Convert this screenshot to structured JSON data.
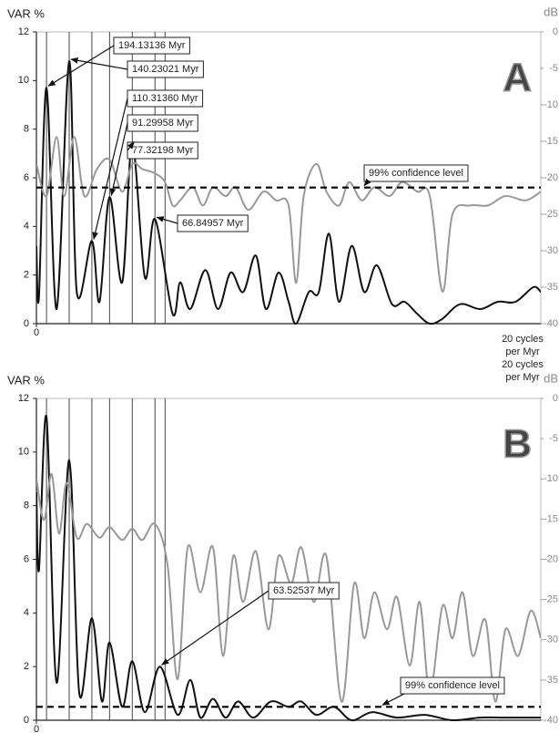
{
  "chart_data": [
    {
      "type": "line",
      "panel_label": "A",
      "y_label": "VAR %",
      "y2_label": "dB",
      "x_label": [
        "20 cycles",
        "per Myr"
      ],
      "xlim": [
        0,
        20
      ],
      "xticks": [
        0
      ],
      "ylim": [
        0,
        12
      ],
      "yticks": [
        0,
        2,
        4,
        6,
        8,
        10,
        12
      ],
      "y2lim": [
        -40,
        0
      ],
      "y2ticks": [
        0,
        -5,
        -10,
        -15,
        -20,
        -25,
        -30,
        -35,
        -40
      ],
      "series": [
        {
          "color": "#111111",
          "x": [
            0,
            0.1,
            0.4,
            0.8,
            1.3,
            1.6,
            2.2,
            2.5,
            2.9,
            3.4,
            3.8,
            4.3,
            4.7,
            5.4,
            5.7,
            6.1,
            6.7,
            7.2,
            7.7,
            8.2,
            8.7,
            9.1,
            9.6,
            10.0,
            10.3,
            10.8,
            11.2,
            11.6,
            12.0,
            12.5,
            13.0,
            13.5,
            14.1,
            14.6,
            15.1,
            15.6,
            16.1,
            16.8,
            17.6,
            18.3,
            19.0,
            19.7,
            20
          ],
          "values": [
            3.2,
            1.1,
            9.7,
            0.6,
            10.8,
            1.3,
            3.4,
            0.9,
            5.2,
            1.7,
            7.4,
            1.9,
            4.3,
            0.4,
            1.7,
            0.6,
            2.2,
            0.6,
            2.1,
            1.3,
            2.8,
            0.6,
            2.1,
            0.9,
            0,
            1.3,
            1.3,
            3.7,
            0.9,
            3.2,
            1.3,
            2.4,
            0.8,
            0.9,
            0.4,
            0,
            0.2,
            0.8,
            0.6,
            0.9,
            0.9,
            1.5,
            1.3
          ]
        },
        {
          "color": "#999999",
          "axis": "y2",
          "x": [
            0,
            0.4,
            0.8,
            1.1,
            1.5,
            1.9,
            2.4,
            2.9,
            3.4,
            3.8,
            4.2,
            4.7,
            5.1,
            5.4,
            5.7,
            6.2,
            6.6,
            7.0,
            7.5,
            7.9,
            8.4,
            9.0,
            9.5,
            10.0,
            10.3,
            10.6,
            11.1,
            11.5,
            12.0,
            12.4,
            12.9,
            13.4,
            14.0,
            14.5,
            15.1,
            15.6,
            16.1,
            16.5,
            17.2,
            17.9,
            18.6,
            19.4,
            20
          ],
          "values": [
            -18.1,
            -22.5,
            -14.4,
            -22.5,
            -14.4,
            -22.5,
            -18.8,
            -17.5,
            -21.9,
            -18.1,
            -18.8,
            -19.4,
            -20.6,
            -23.8,
            -23.1,
            -21.3,
            -23.8,
            -21.3,
            -22.5,
            -21.3,
            -24.4,
            -21.9,
            -23.1,
            -23.8,
            -34.4,
            -22.5,
            -18.1,
            -21.9,
            -23.8,
            -20.6,
            -23.1,
            -21.3,
            -22.5,
            -20.6,
            -21.9,
            -22.5,
            -35.6,
            -25.0,
            -23.8,
            -23.8,
            -22.5,
            -23.1,
            -21.9
          ]
        }
      ],
      "confidence": {
        "label": "99% confidence level",
        "value": 5.6
      },
      "annotations": [
        {
          "label": "194.13136 Myr",
          "x": 0.4,
          "y": 9.7
        },
        {
          "label": "140.23021 Myr",
          "x": 1.3,
          "y": 10.8
        },
        {
          "label": "110.31360 Myr",
          "x": 2.2,
          "y": 3.4
        },
        {
          "label": "91.29958 Myr",
          "x": 2.9,
          "y": 5.2
        },
        {
          "label": "77.32198 Myr",
          "x": 3.8,
          "y": 7.4
        },
        {
          "label": "66.84957 Myr",
          "x": 4.7,
          "y": 4.3
        }
      ],
      "period_lines": [
        0.4,
        1.3,
        2.2,
        2.9,
        3.8,
        4.7,
        5.1
      ]
    },
    {
      "type": "line",
      "panel_label": "B",
      "y_label": "VAR %",
      "y2_label": "dB",
      "x_label": [
        "20 cycles",
        "per Myr"
      ],
      "xlim": [
        0,
        20
      ],
      "xticks": [
        0
      ],
      "ylim": [
        0,
        12
      ],
      "yticks": [
        0,
        2,
        4,
        6,
        8,
        10,
        12
      ],
      "y2lim": [
        -40,
        0
      ],
      "y2ticks": [
        0,
        -5,
        -10,
        -15,
        -20,
        -25,
        -30,
        -35,
        -40
      ],
      "series": [
        {
          "color": "#111111",
          "x": [
            0,
            0.1,
            0.4,
            0.8,
            1.3,
            1.7,
            2.2,
            2.6,
            2.9,
            3.4,
            3.8,
            4.3,
            4.9,
            5.6,
            6.1,
            6.5,
            7.0,
            7.5,
            8.0,
            8.6,
            9.3,
            10.0,
            10.5,
            11.1,
            11.8,
            12.5,
            13.3,
            14.3,
            15.4,
            16.5,
            17.6,
            18.6,
            20
          ],
          "values": [
            8.5,
            5.6,
            11.3,
            1.4,
            9.7,
            1.0,
            3.8,
            0.7,
            2.9,
            0.5,
            2.2,
            0.3,
            2.0,
            0.2,
            1.5,
            0.1,
            0.8,
            0.1,
            0.7,
            0.1,
            0.7,
            0.5,
            0.7,
            0.2,
            0.5,
            0,
            0.3,
            0.1,
            0.2,
            0,
            0.1,
            0.1,
            0.1
          ]
        },
        {
          "color": "#999999",
          "axis": "y2",
          "x": [
            0,
            0.3,
            0.6,
            0.9,
            1.2,
            1.6,
            2.0,
            2.5,
            2.9,
            3.4,
            3.8,
            4.2,
            4.7,
            5.2,
            5.6,
            6.0,
            6.5,
            7.0,
            7.4,
            7.8,
            8.2,
            8.7,
            9.2,
            9.6,
            10.1,
            10.5,
            11.0,
            11.5,
            12.1,
            12.6,
            13.0,
            13.4,
            13.9,
            14.3,
            14.8,
            15.2,
            15.6,
            16.1,
            16.5,
            16.9,
            17.3,
            17.8,
            18.2,
            18.6,
            19.1,
            19.6,
            20
          ],
          "values": [
            -10.0,
            -15.1,
            -9.4,
            -16.8,
            -10.5,
            -17.3,
            -15.6,
            -17.3,
            -16.0,
            -17.6,
            -16.2,
            -17.6,
            -15.6,
            -20.7,
            -34.9,
            -18.5,
            -24.1,
            -18.5,
            -32.0,
            -19.6,
            -25.3,
            -19.0,
            -28.7,
            -19.6,
            -23.0,
            -18.5,
            -25.3,
            -19.6,
            -37.7,
            -23.0,
            -29.8,
            -24.1,
            -28.7,
            -24.7,
            -33.2,
            -25.3,
            -36.6,
            -25.8,
            -29.8,
            -24.1,
            -32.0,
            -27.5,
            -37.7,
            -28.7,
            -32.0,
            -26.4,
            -29.8
          ]
        }
      ],
      "confidence": {
        "label": "99% confidence level",
        "value": 0.5
      },
      "annotations": [
        {
          "label": "63.52537 Myr",
          "x": 4.9,
          "y": 2.0
        }
      ],
      "period_lines": [
        0.4,
        1.3,
        2.2,
        2.9,
        3.8,
        4.7,
        5.1
      ]
    }
  ]
}
